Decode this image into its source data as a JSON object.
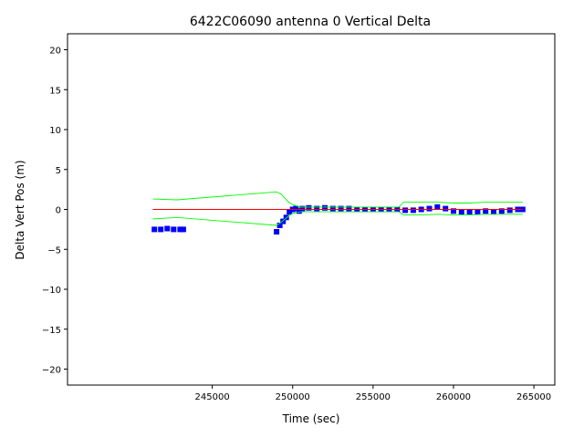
{
  "chart_data": {
    "type": "scatter",
    "title": "6422C06090 antenna 0 Vertical Delta",
    "xlabel": "Time (sec)",
    "ylabel": "Delta Vert Pos (m)",
    "xlim": [
      236000,
      266300
    ],
    "ylim": [
      -22,
      22
    ],
    "xticks": [
      245000,
      250000,
      255000,
      260000,
      265000
    ],
    "yticks": [
      -20,
      -15,
      -10,
      -5,
      0,
      5,
      10,
      15,
      20
    ],
    "grid": false,
    "colors": {
      "points": "#0000ff",
      "bounds": "#00ff00",
      "reference": "#ff0000"
    },
    "series": [
      {
        "role": "points",
        "x": [
          241400,
          241800,
          242200,
          242600,
          243000,
          243200,
          249000,
          249200,
          249400,
          249600,
          249800,
          250000,
          250200,
          250400,
          250600,
          251000,
          251500,
          252000,
          252500,
          253000,
          253500,
          254000,
          254500,
          255000,
          255500,
          256000,
          256500,
          257000,
          257500,
          258000,
          258500,
          259000,
          259500,
          260000,
          260500,
          261000,
          261500,
          262000,
          262500,
          263000,
          263500,
          264000,
          264300
        ],
        "y": [
          -2.5,
          -2.5,
          -2.4,
          -2.5,
          -2.5,
          -2.5,
          -2.8,
          -2.0,
          -1.5,
          -1.0,
          -0.3,
          0.0,
          0.1,
          -0.2,
          0.1,
          0.2,
          0.1,
          0.2,
          0.1,
          0.1,
          0.1,
          0.0,
          0.0,
          0.0,
          0.0,
          0.0,
          0.0,
          -0.1,
          -0.1,
          0.0,
          0.1,
          0.3,
          0.1,
          -0.2,
          -0.3,
          -0.3,
          -0.3,
          -0.2,
          -0.3,
          -0.2,
          -0.1,
          0.0,
          0.0
        ]
      },
      {
        "role": "upper-bound",
        "x": [
          241300,
          242800,
          249000,
          249300,
          249700,
          250000,
          250500,
          251500,
          253000,
          255000,
          256600,
          256900,
          258000,
          259000,
          260000,
          261000,
          262000,
          263000,
          264300
        ],
        "y": [
          1.3,
          1.2,
          2.2,
          1.9,
          1.0,
          0.6,
          0.3,
          0.3,
          0.3,
          0.3,
          0.3,
          0.9,
          0.9,
          0.9,
          0.8,
          0.8,
          0.9,
          0.9,
          0.9
        ]
      },
      {
        "role": "lower-bound",
        "x": [
          241300,
          242800,
          249000,
          249300,
          249700,
          250000,
          250500,
          251500,
          253000,
          255000,
          256600,
          256900,
          258000,
          259000,
          260000,
          261000,
          262000,
          263000,
          264300
        ],
        "y": [
          -1.2,
          -1.0,
          -2.0,
          -1.6,
          -0.9,
          -0.5,
          -0.3,
          -0.3,
          -0.3,
          -0.3,
          -0.3,
          -0.7,
          -0.7,
          -0.6,
          -0.7,
          -0.7,
          -0.6,
          -0.6,
          -0.6
        ]
      },
      {
        "role": "reference",
        "x": [
          241300,
          264300
        ],
        "y": [
          0,
          0
        ]
      }
    ]
  }
}
